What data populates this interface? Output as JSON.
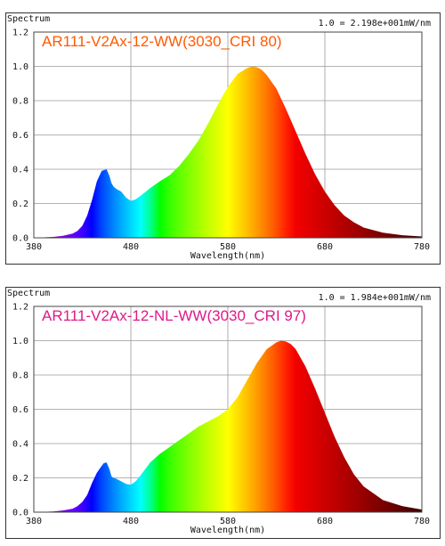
{
  "chart_data": [
    {
      "type": "area",
      "title": "AR111-V2Ax-12-WW(3030_CRI 80)",
      "title_color": "#ff5a00",
      "ylabel": "Spectrum",
      "xlabel": "Wavelength(nm)",
      "normalization": "1.0 = 2.198e+001mW/nm",
      "xlim": [
        380,
        780
      ],
      "ylim": [
        0,
        1.2
      ],
      "x_ticks": [
        "380",
        "480",
        "580",
        "680",
        "780"
      ],
      "y_ticks": [
        "0.0",
        "0.2",
        "0.4",
        "0.6",
        "0.8",
        "1.0",
        "1.2"
      ],
      "grid": true,
      "x": [
        380,
        400,
        410,
        420,
        425,
        430,
        435,
        440,
        445,
        450,
        455,
        458,
        460,
        462,
        465,
        470,
        475,
        480,
        485,
        490,
        500,
        510,
        520,
        530,
        540,
        550,
        560,
        570,
        580,
        590,
        600,
        605,
        610,
        615,
        620,
        630,
        640,
        650,
        660,
        670,
        680,
        690,
        700,
        710,
        720,
        740,
        760,
        780
      ],
      "y": [
        0,
        0.005,
        0.012,
        0.025,
        0.04,
        0.07,
        0.13,
        0.22,
        0.33,
        0.39,
        0.4,
        0.36,
        0.32,
        0.3,
        0.285,
        0.27,
        0.235,
        0.215,
        0.225,
        0.245,
        0.29,
        0.33,
        0.365,
        0.42,
        0.49,
        0.57,
        0.67,
        0.78,
        0.88,
        0.955,
        0.99,
        1.0,
        0.995,
        0.98,
        0.95,
        0.87,
        0.75,
        0.62,
        0.49,
        0.37,
        0.27,
        0.19,
        0.13,
        0.09,
        0.06,
        0.03,
        0.015,
        0.008
      ]
    },
    {
      "type": "area",
      "title": "AR111-V2Ax-12-NL-WW(3030_CRI 97)",
      "title_color": "#e0198a",
      "ylabel": "Spectrum",
      "xlabel": "Wavelength(nm)",
      "normalization": "1.0 = 1.984e+001mW/nm",
      "xlim": [
        380,
        780
      ],
      "ylim": [
        0,
        1.2
      ],
      "x_ticks": [
        "380",
        "480",
        "580",
        "680",
        "780"
      ],
      "y_ticks": [
        "0.0",
        "0.2",
        "0.4",
        "0.6",
        "0.8",
        "1.0",
        "1.2"
      ],
      "grid": true,
      "x": [
        380,
        400,
        410,
        420,
        425,
        430,
        435,
        440,
        445,
        450,
        452,
        455,
        458,
        460,
        462,
        465,
        470,
        475,
        480,
        485,
        490,
        500,
        510,
        520,
        530,
        540,
        550,
        560,
        570,
        580,
        590,
        600,
        610,
        620,
        630,
        635,
        640,
        645,
        650,
        660,
        670,
        680,
        690,
        700,
        710,
        720,
        740,
        760,
        780
      ],
      "y": [
        0,
        0.004,
        0.01,
        0.02,
        0.035,
        0.06,
        0.1,
        0.17,
        0.23,
        0.27,
        0.285,
        0.29,
        0.25,
        0.21,
        0.2,
        0.195,
        0.18,
        0.165,
        0.16,
        0.18,
        0.215,
        0.29,
        0.34,
        0.38,
        0.42,
        0.46,
        0.5,
        0.53,
        0.56,
        0.6,
        0.67,
        0.77,
        0.87,
        0.95,
        0.99,
        1.0,
        0.995,
        0.98,
        0.95,
        0.85,
        0.72,
        0.58,
        0.44,
        0.32,
        0.22,
        0.15,
        0.07,
        0.035,
        0.015
      ]
    }
  ]
}
